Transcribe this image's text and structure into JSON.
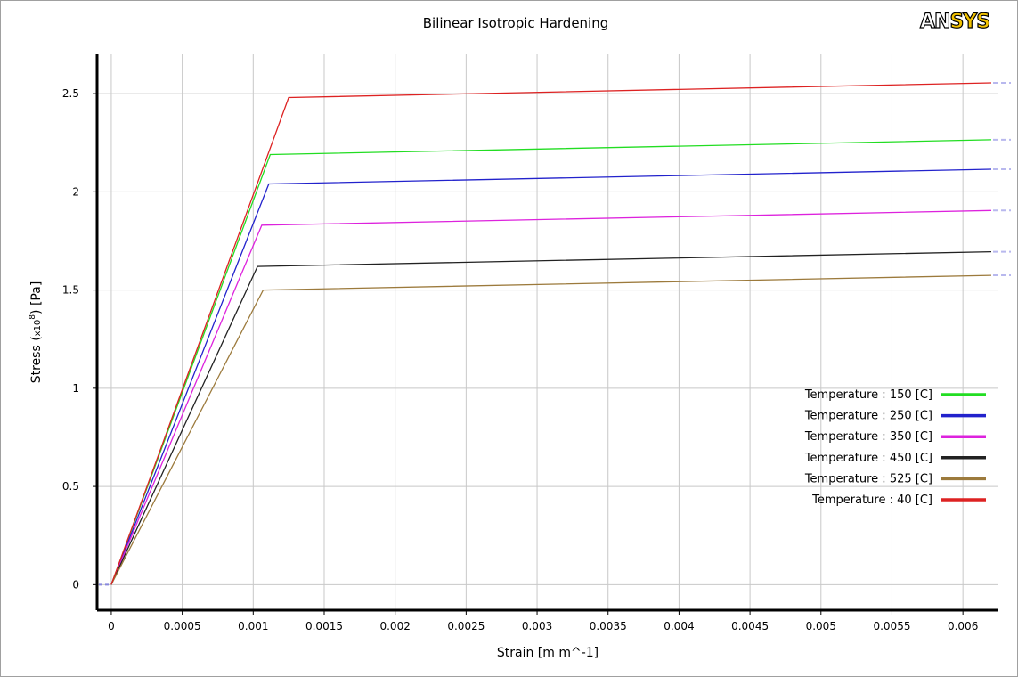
{
  "logo": {
    "text_main": "AN",
    "text_accent": "SYS"
  },
  "chart_data": {
    "type": "line",
    "title": "Bilinear Isotropic Hardening",
    "xlabel": "Strain  [m m^-1]",
    "ylabel_main": "Stress  (",
    "ylabel_scale": "x10",
    "ylabel_exp": "8",
    "ylabel_end": ")  [Pa]",
    "xlim": [
      -0.0001,
      0.00625
    ],
    "ylim": [
      -0.13,
      2.7
    ],
    "x_ticks": [
      0,
      0.0005,
      0.001,
      0.0015,
      0.002,
      0.0025,
      0.003,
      0.0035,
      0.004,
      0.0045,
      0.005,
      0.0055,
      0.006
    ],
    "x_tick_labels": [
      "0",
      "0.0005",
      "0.001",
      "0.0015",
      "0.002",
      "0.0025",
      "0.003",
      "0.0035",
      "0.004",
      "0.0045",
      "0.005",
      "0.0055",
      "0.006"
    ],
    "y_ticks": [
      0,
      0.5,
      1,
      1.5,
      2,
      2.5
    ],
    "y_tick_labels": [
      "0",
      "0.5",
      "1",
      "1.5",
      "2",
      "2.5"
    ],
    "grid": true,
    "legend_position": "bottom-right",
    "series": [
      {
        "name": "Temperature : 150 [C]",
        "color": "#22dd22",
        "x": [
          0,
          0.00112,
          0.0062
        ],
        "y": [
          0,
          2.19,
          2.265
        ]
      },
      {
        "name": "Temperature : 250 [C]",
        "color": "#2222cc",
        "x": [
          0,
          0.00111,
          0.0062
        ],
        "y": [
          0,
          2.04,
          2.115
        ]
      },
      {
        "name": "Temperature : 350 [C]",
        "color": "#dd22dd",
        "x": [
          0,
          0.00106,
          0.0062
        ],
        "y": [
          0,
          1.83,
          1.905
        ]
      },
      {
        "name": "Temperature : 450 [C]",
        "color": "#222222",
        "x": [
          0,
          0.00103,
          0.0062
        ],
        "y": [
          0,
          1.62,
          1.695
        ]
      },
      {
        "name": "Temperature : 525 [C]",
        "color": "#9c7a3c",
        "x": [
          0,
          0.00107,
          0.0062
        ],
        "y": [
          0,
          1.5,
          1.575
        ]
      },
      {
        "name": "Temperature : 40 [C]",
        "color": "#dd2222",
        "x": [
          0,
          0.00125,
          0.0062
        ],
        "y": [
          0,
          2.48,
          2.555
        ]
      }
    ]
  }
}
